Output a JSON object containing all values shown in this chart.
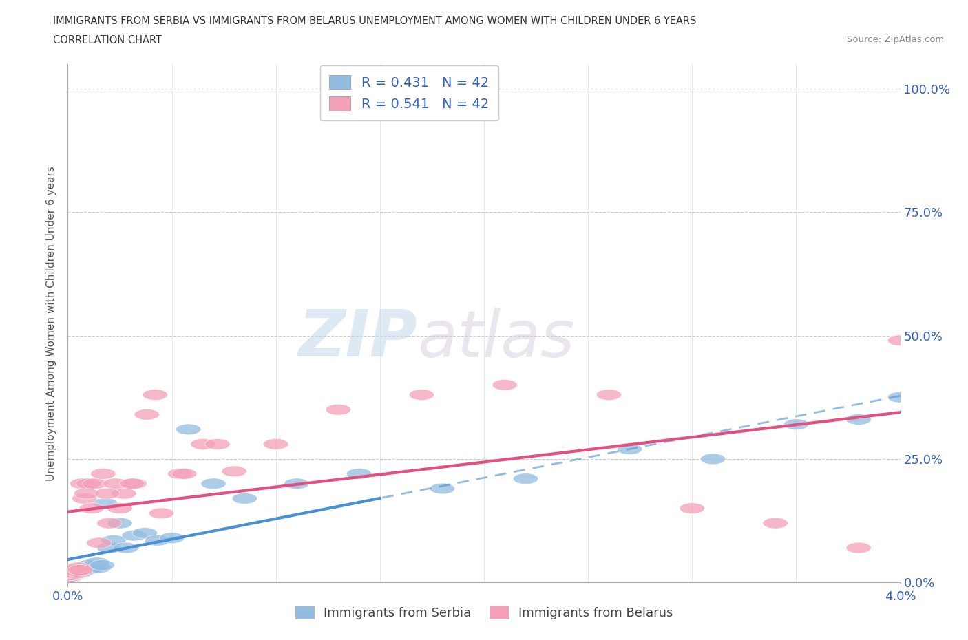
{
  "title_line1": "IMMIGRANTS FROM SERBIA VS IMMIGRANTS FROM BELARUS UNEMPLOYMENT AMONG WOMEN WITH CHILDREN UNDER 6 YEARS",
  "title_line2": "CORRELATION CHART",
  "source_text": "Source: ZipAtlas.com",
  "ylabel": "Unemployment Among Women with Children Under 6 years",
  "xlim": [
    0.0,
    0.04
  ],
  "ylim": [
    0.0,
    1.05
  ],
  "ytick_values": [
    0.0,
    0.25,
    0.5,
    0.75,
    1.0
  ],
  "ytick_labels": [
    "0.0%",
    "25.0%",
    "50.0%",
    "75.0%",
    "100.0%"
  ],
  "xtick_values": [
    0.0,
    0.04
  ],
  "xtick_labels": [
    "0.0%",
    "4.0%"
  ],
  "color_serbia": "#92bce0",
  "color_belarus": "#f4a0b8",
  "color_serbia_line": "#4a90d4",
  "color_belarus_line": "#e05080",
  "color_text": "#333333",
  "color_grid": "#cccccc",
  "color_blue_label": "#3060c0",
  "watermark_zip": "ZIP",
  "watermark_atlas": "atlas",
  "serbia_x": [
    0.0001,
    0.00015,
    0.0002,
    0.00025,
    0.0003,
    0.00035,
    0.0004,
    0.00045,
    0.0005,
    0.00055,
    0.0006,
    0.0007,
    0.0008,
    0.0009,
    0.001,
    0.0011,
    0.0012,
    0.0013,
    0.0014,
    0.0015,
    0.00165,
    0.0018,
    0.002,
    0.0022,
    0.0025,
    0.0028,
    0.0032,
    0.0037,
    0.0043,
    0.005,
    0.0058,
    0.007,
    0.0085,
    0.011,
    0.014,
    0.018,
    0.022,
    0.027,
    0.031,
    0.035,
    0.038,
    0.04
  ],
  "serbia_y": [
    0.01,
    0.015,
    0.015,
    0.02,
    0.015,
    0.018,
    0.02,
    0.018,
    0.022,
    0.02,
    0.025,
    0.022,
    0.025,
    0.03,
    0.035,
    0.028,
    0.03,
    0.035,
    0.04,
    0.03,
    0.035,
    0.16,
    0.07,
    0.085,
    0.12,
    0.07,
    0.095,
    0.1,
    0.085,
    0.09,
    0.31,
    0.2,
    0.17,
    0.2,
    0.22,
    0.19,
    0.21,
    0.27,
    0.25,
    0.32,
    0.33,
    0.375
  ],
  "belarus_x": [
    0.0001,
    0.00015,
    0.0002,
    0.00025,
    0.0003,
    0.00035,
    0.0004,
    0.00045,
    0.0005,
    0.0006,
    0.0007,
    0.0008,
    0.0009,
    0.001,
    0.00115,
    0.0013,
    0.0015,
    0.0017,
    0.002,
    0.0023,
    0.0027,
    0.0032,
    0.0038,
    0.0045,
    0.0054,
    0.0065,
    0.008,
    0.01,
    0.013,
    0.017,
    0.021,
    0.026,
    0.03,
    0.034,
    0.038,
    0.04,
    0.0019,
    0.0025,
    0.0031,
    0.0042,
    0.0056,
    0.0072
  ],
  "belarus_y": [
    0.012,
    0.015,
    0.018,
    0.02,
    0.02,
    0.018,
    0.025,
    0.022,
    0.03,
    0.025,
    0.2,
    0.17,
    0.18,
    0.2,
    0.15,
    0.2,
    0.08,
    0.22,
    0.12,
    0.2,
    0.18,
    0.2,
    0.34,
    0.14,
    0.22,
    0.28,
    0.225,
    0.28,
    0.35,
    0.38,
    0.4,
    0.38,
    0.15,
    0.12,
    0.07,
    0.49,
    0.18,
    0.15,
    0.2,
    0.38,
    0.22,
    0.28
  ],
  "serbia_line_x_end": 0.015,
  "legend_items": [
    {
      "label": "R = 0.431   N = 42",
      "color": "#92bce0"
    },
    {
      "label": "R = 0.541   N = 42",
      "color": "#f4a0b8"
    }
  ]
}
